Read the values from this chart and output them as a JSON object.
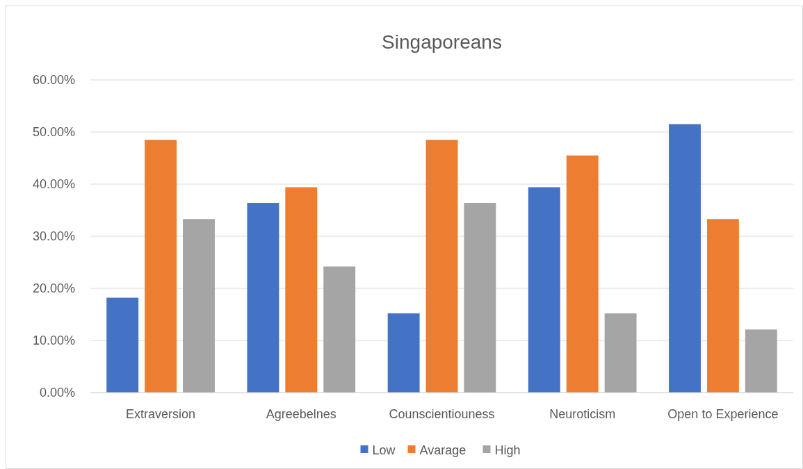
{
  "chart_data": {
    "type": "bar",
    "title": "Singaporeans",
    "categories": [
      "Extraversion",
      "Agreebelnes",
      "Counscientiouness",
      "Neuroticism",
      "Open to Experience"
    ],
    "series": [
      {
        "name": "Low",
        "color": "#4472c4",
        "values": [
          18.2,
          36.4,
          15.2,
          39.4,
          51.5
        ]
      },
      {
        "name": "Avarage",
        "color": "#ed7d31",
        "values": [
          48.5,
          39.4,
          48.5,
          45.5,
          33.3
        ]
      },
      {
        "name": "High",
        "color": "#a5a5a5",
        "values": [
          33.3,
          24.2,
          36.4,
          15.2,
          12.1
        ]
      }
    ],
    "ylim": [
      0,
      60
    ],
    "yticks": [
      {
        "value": 0,
        "label": "0.00%"
      },
      {
        "value": 10,
        "label": "10.00%"
      },
      {
        "value": 20,
        "label": "20.00%"
      },
      {
        "value": 30,
        "label": "30.00%"
      },
      {
        "value": 40,
        "label": "40.00%"
      },
      {
        "value": 50,
        "label": "50.00%"
      },
      {
        "value": 60,
        "label": "60.00%"
      }
    ],
    "grid": "y",
    "legend": "bottom"
  }
}
